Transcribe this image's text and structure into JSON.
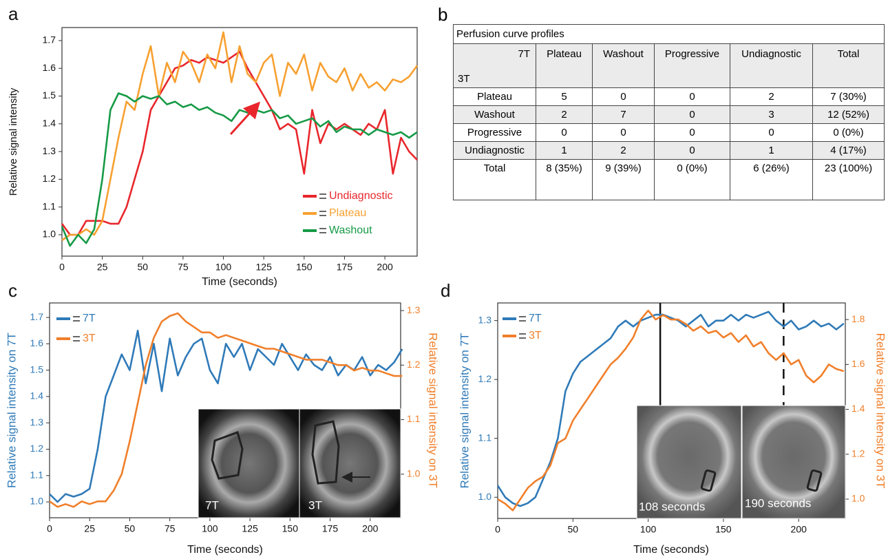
{
  "chart_data": [
    {
      "type": "line",
      "panel": "a",
      "xlabel": "Time (seconds)",
      "ylabel": "Relative signal intensity",
      "xlim": [
        0,
        220
      ],
      "ylim": [
        0.923,
        1.747
      ],
      "xticks": [
        0,
        25,
        50,
        75,
        100,
        125,
        150,
        175,
        200
      ],
      "yticks": [
        {
          "value": 1,
          "label": "1.0"
        },
        1.1,
        1.2,
        1.3,
        1.4,
        1.5,
        1.6,
        1.7
      ],
      "grid": false,
      "legend": "lower right",
      "x": [
        0,
        5,
        10,
        15,
        20,
        25,
        30,
        35,
        40,
        45,
        50,
        55,
        60,
        65,
        70,
        75,
        80,
        85,
        90,
        95,
        100,
        105,
        110,
        115,
        120,
        125,
        130,
        135,
        140,
        145,
        150,
        155,
        160,
        165,
        170,
        175,
        180,
        185,
        190,
        195,
        200,
        205,
        210,
        215,
        220
      ],
      "series": [
        {
          "name": "Undiagnostic",
          "color": "#e8262c",
          "values": [
            1.04,
            1.0,
            1.0,
            1.05,
            1.05,
            1.05,
            1.04,
            1.04,
            1.1,
            1.2,
            1.3,
            1.45,
            1.5,
            1.55,
            1.6,
            1.61,
            1.63,
            1.62,
            1.64,
            1.63,
            1.62,
            1.64,
            1.66,
            1.6,
            1.55,
            1.5,
            1.45,
            1.38,
            1.4,
            1.38,
            1.22,
            1.45,
            1.33,
            1.4,
            1.38,
            1.4,
            1.38,
            1.36,
            1.4,
            1.38,
            1.45,
            1.22,
            1.35,
            1.3,
            1.27
          ]
        },
        {
          "name": "Plateau",
          "color": "#f7a030",
          "values": [
            0.98,
            1.0,
            1.0,
            1.02,
            1.0,
            1.05,
            1.2,
            1.35,
            1.48,
            1.45,
            1.58,
            1.68,
            1.5,
            1.62,
            1.55,
            1.66,
            1.62,
            1.55,
            1.65,
            1.6,
            1.73,
            1.55,
            1.68,
            1.58,
            1.55,
            1.62,
            1.65,
            1.5,
            1.62,
            1.58,
            1.65,
            1.52,
            1.62,
            1.57,
            1.55,
            1.6,
            1.52,
            1.58,
            1.53,
            1.55,
            1.52,
            1.56,
            1.55,
            1.57,
            1.61
          ]
        },
        {
          "name": "Washout",
          "color": "#169a46",
          "values": [
            1.03,
            0.96,
            1.0,
            0.97,
            1.02,
            1.2,
            1.45,
            1.51,
            1.5,
            1.48,
            1.5,
            1.49,
            1.5,
            1.47,
            1.48,
            1.46,
            1.47,
            1.45,
            1.46,
            1.44,
            1.43,
            1.41,
            1.45,
            1.44,
            1.45,
            1.44,
            1.45,
            1.42,
            1.43,
            1.4,
            1.41,
            1.42,
            1.39,
            1.41,
            1.37,
            1.39,
            1.38,
            1.38,
            1.36,
            1.38,
            1.37,
            1.36,
            1.37,
            1.35,
            1.37
          ]
        }
      ]
    },
    {
      "type": "line",
      "panel": "c",
      "xlabel": "Time (seconds)",
      "ylabel": "Relative signal intensity on 7T",
      "y2label": "Relative signal intensity on 3T",
      "xlim": [
        0,
        219
      ],
      "ylim": [
        0.94,
        1.755
      ],
      "y2lim": [
        0.92,
        1.314
      ],
      "xticks": [
        0,
        25,
        50,
        75,
        100,
        125,
        150,
        175,
        200
      ],
      "yticks": [
        {
          "value": 1,
          "label": "1.0"
        },
        1.1,
        1.2,
        1.3,
        1.4,
        1.5,
        1.6,
        1.7
      ],
      "y2ticks": [
        {
          "value": 1,
          "label": "1.0"
        },
        1.1,
        1.2,
        1.3
      ],
      "grid": false,
      "legend": "upper left",
      "annotations": [
        "7T",
        "3T"
      ],
      "x": [
        0,
        5,
        10,
        15,
        20,
        25,
        30,
        35,
        40,
        45,
        50,
        55,
        60,
        65,
        70,
        75,
        80,
        85,
        90,
        95,
        100,
        105,
        110,
        115,
        120,
        125,
        130,
        135,
        140,
        145,
        150,
        155,
        160,
        165,
        170,
        175,
        180,
        185,
        190,
        195,
        200,
        205,
        210,
        215,
        220
      ],
      "series": [
        {
          "name": "7T",
          "color": "#2f7ab8",
          "values": [
            1.03,
            1.0,
            1.03,
            1.02,
            1.03,
            1.05,
            1.2,
            1.4,
            1.48,
            1.56,
            1.5,
            1.65,
            1.45,
            1.6,
            1.42,
            1.62,
            1.48,
            1.55,
            1.6,
            1.62,
            1.5,
            1.45,
            1.6,
            1.55,
            1.6,
            1.5,
            1.58,
            1.55,
            1.52,
            1.6,
            1.55,
            1.5,
            1.56,
            1.52,
            1.5,
            1.55,
            1.48,
            1.52,
            1.5,
            1.55,
            1.48,
            1.52,
            1.5,
            1.53,
            1.58
          ]
        },
        {
          "name": "3T",
          "color": "#f07f2a",
          "axis": "y2",
          "values": [
            0.95,
            0.94,
            0.945,
            0.94,
            0.95,
            0.945,
            0.95,
            0.95,
            0.97,
            1.0,
            1.06,
            1.13,
            1.2,
            1.25,
            1.28,
            1.29,
            1.295,
            1.28,
            1.27,
            1.26,
            1.26,
            1.25,
            1.255,
            1.25,
            1.245,
            1.24,
            1.235,
            1.23,
            1.23,
            1.225,
            1.22,
            1.215,
            1.21,
            1.21,
            1.21,
            1.205,
            1.2,
            1.2,
            1.19,
            1.195,
            1.19,
            1.19,
            1.185,
            1.18,
            1.18
          ]
        }
      ]
    },
    {
      "type": "line",
      "panel": "d",
      "xlabel": "Time (seconds)",
      "ylabel": "Relative signal intensity on 7T",
      "y2label": "Relative signal intensity on 3T",
      "xlim": [
        0,
        231
      ],
      "ylim": [
        0.964,
        1.33
      ],
      "y2lim": [
        0.914,
        1.874
      ],
      "xticks": [
        0,
        50,
        100,
        150,
        200
      ],
      "yticks": [
        {
          "value": 1,
          "label": "1.0"
        },
        1.1,
        1.2,
        1.3
      ],
      "y2ticks": [
        {
          "value": 1,
          "label": "1.0"
        },
        1.2,
        1.4,
        1.6,
        1.8
      ],
      "grid": false,
      "legend": "upper left",
      "annotations": [
        "108 seconds",
        "190 seconds"
      ],
      "vlines": [
        {
          "x": 108,
          "style": "solid"
        },
        {
          "x": 190,
          "style": "dashed"
        }
      ],
      "x": [
        0,
        5,
        10,
        15,
        20,
        25,
        30,
        35,
        40,
        45,
        50,
        55,
        60,
        65,
        70,
        75,
        80,
        85,
        90,
        95,
        100,
        105,
        110,
        115,
        120,
        125,
        130,
        135,
        140,
        145,
        150,
        155,
        160,
        165,
        170,
        175,
        180,
        185,
        190,
        195,
        200,
        205,
        210,
        215,
        220,
        225,
        230
      ],
      "series": [
        {
          "name": "7T",
          "color": "#2f7ab8",
          "values": [
            1.02,
            1.0,
            0.99,
            0.985,
            0.99,
            1.0,
            1.03,
            1.06,
            1.1,
            1.18,
            1.21,
            1.23,
            1.24,
            1.25,
            1.26,
            1.27,
            1.29,
            1.3,
            1.29,
            1.3,
            1.305,
            1.31,
            1.31,
            1.305,
            1.3,
            1.29,
            1.3,
            1.31,
            1.29,
            1.3,
            1.3,
            1.31,
            1.3,
            1.31,
            1.305,
            1.31,
            1.315,
            1.3,
            1.29,
            1.3,
            1.285,
            1.29,
            1.3,
            1.29,
            1.295,
            1.285,
            1.295
          ]
        },
        {
          "name": "3T",
          "color": "#f07f2a",
          "axis": "y2",
          "values": [
            1.0,
            0.98,
            0.95,
            1.0,
            1.05,
            1.08,
            1.1,
            1.15,
            1.25,
            1.27,
            1.35,
            1.4,
            1.45,
            1.5,
            1.55,
            1.6,
            1.63,
            1.67,
            1.72,
            1.8,
            1.84,
            1.8,
            1.82,
            1.8,
            1.8,
            1.78,
            1.75,
            1.77,
            1.74,
            1.75,
            1.72,
            1.74,
            1.7,
            1.73,
            1.68,
            1.7,
            1.65,
            1.62,
            1.65,
            1.6,
            1.62,
            1.55,
            1.52,
            1.55,
            1.6,
            1.58,
            1.57
          ]
        }
      ]
    }
  ],
  "table": {
    "panel": "b",
    "title": "Perfusion curve profiles",
    "corner": {
      "top": "7T",
      "left": "3T"
    },
    "columns": [
      "Plateau",
      "Washout",
      "Progressive",
      "Undiagnostic",
      "Total"
    ],
    "rows": [
      [
        "Plateau",
        5,
        0,
        0,
        2,
        "7 (30%)"
      ],
      [
        "Washout",
        2,
        7,
        0,
        3,
        "12 (52%)"
      ],
      [
        "Progressive",
        0,
        0,
        0,
        0,
        "0 (0%)"
      ],
      [
        "Undiagnostic",
        1,
        2,
        0,
        1,
        "4 (17%)"
      ],
      [
        "Total",
        "8 (35%)",
        "9 (39%)",
        "0 (0%)",
        "6 (26%)",
        "23 (100%)"
      ]
    ]
  }
}
